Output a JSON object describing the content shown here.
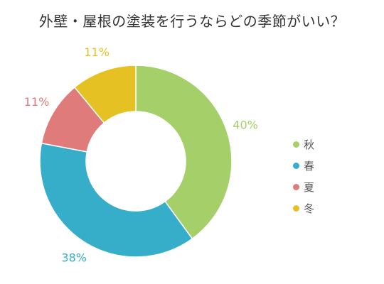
{
  "chart_data": {
    "type": "pie",
    "title": "外壁・屋根の塗装を行うならどの季節がいい？",
    "categories": [
      "秋",
      "春",
      "夏",
      "冬"
    ],
    "values": [
      40,
      38,
      11,
      11
    ],
    "unit": "%",
    "data_labels": [
      "40%",
      "38%",
      "11%",
      "11%"
    ],
    "colors": [
      "#a5cf69",
      "#36aec9",
      "#e07b7b",
      "#e6c124"
    ],
    "legend_position": "right",
    "donut": true
  }
}
